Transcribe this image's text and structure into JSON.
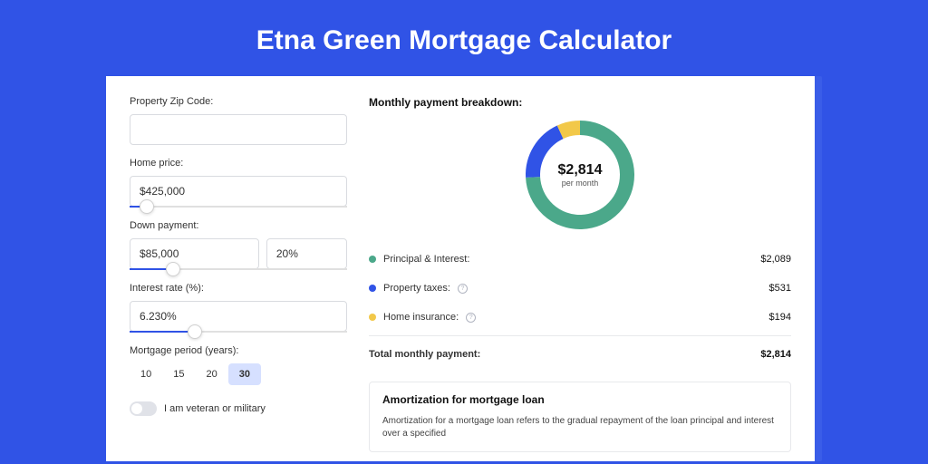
{
  "page": {
    "title": "Etna Green Mortgage Calculator",
    "bg_color": "#3053e6",
    "card_wrap_color": "#3a5de8",
    "card_bg": "#ffffff"
  },
  "form": {
    "zip": {
      "label": "Property Zip Code:",
      "value": ""
    },
    "home_price": {
      "label": "Home price:",
      "value": "$425,000",
      "slider_percent": 8
    },
    "down_payment": {
      "label": "Down payment:",
      "value": "$85,000",
      "percent_value": "20%",
      "slider_percent": 20
    },
    "interest_rate": {
      "label": "Interest rate (%):",
      "value": "6.230%",
      "slider_percent": 30
    },
    "period": {
      "label": "Mortgage period (years):",
      "options": [
        "10",
        "15",
        "20",
        "30"
      ],
      "selected": "30"
    },
    "veteran": {
      "label": "I am veteran or military",
      "checked": false
    }
  },
  "breakdown": {
    "heading": "Monthly payment breakdown:",
    "donut": {
      "amount": "$2,814",
      "sub": "per month",
      "slices": [
        {
          "label": "Principal & Interest:",
          "value": "$2,089",
          "num": 2089,
          "color": "#4ba88a"
        },
        {
          "label": "Property taxes:",
          "value": "$531",
          "num": 531,
          "color": "#3053e6",
          "info": true
        },
        {
          "label": "Home insurance:",
          "value": "$194",
          "num": 194,
          "color": "#f2c849",
          "info": true
        }
      ],
      "total_label": "Total monthly payment:",
      "total_value": "$2,814",
      "stroke_width": 16,
      "bg": "#ffffff"
    }
  },
  "amortization": {
    "title": "Amortization for mortgage loan",
    "body": "Amortization for a mortgage loan refers to the gradual repayment of the loan principal and interest over a specified"
  },
  "colors": {
    "border": "#d9dbe0",
    "text": "#333333",
    "slider_fill": "#3053e6",
    "slider_track": "#e0e0e0",
    "period_selected_bg": "#d6e0ff"
  }
}
